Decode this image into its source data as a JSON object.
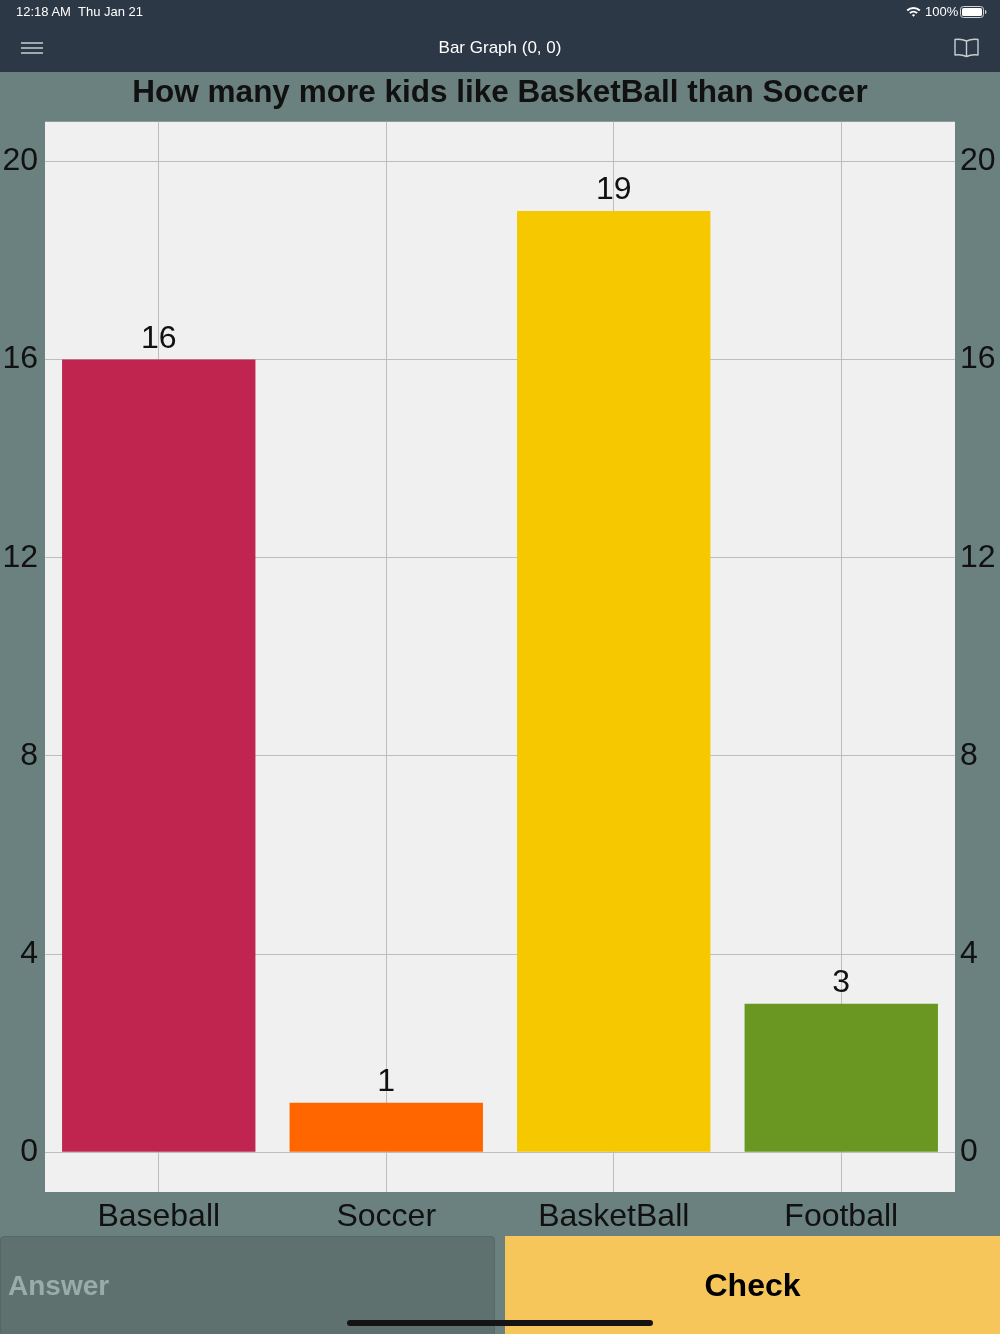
{
  "chart_data": {
    "type": "bar",
    "title": "How many more kids like BasketBall than Soccer",
    "categories": [
      "Baseball",
      "Soccer",
      "BasketBall",
      "Football"
    ],
    "values": [
      16,
      1,
      19,
      3
    ],
    "colors": [
      "#c02550",
      "#ff6600",
      "#f5c800",
      "#6a9721"
    ],
    "ylim": [
      -0.8,
      20.8
    ],
    "yticks": [
      0,
      4,
      8,
      12,
      16,
      20
    ],
    "y2lim": [
      -0.8,
      20.8
    ],
    "y2ticks": [
      0,
      4,
      8,
      12,
      16,
      20
    ],
    "grid": true,
    "data_labels": true,
    "annotations": [
      "12:18 AM",
      "Thu Jan 21",
      "100%",
      "Bar Graph (0, 0)",
      "Answer",
      "Check"
    ]
  }
}
